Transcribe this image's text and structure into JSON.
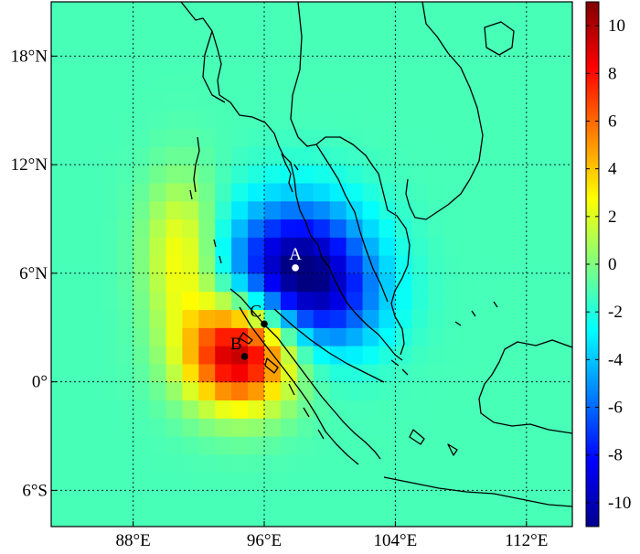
{
  "map": {
    "x_ticks": [
      {
        "lon": 88,
        "label": "88°E"
      },
      {
        "lon": 96,
        "label": "96°E"
      },
      {
        "lon": 104,
        "label": "104°E"
      },
      {
        "lon": 112,
        "label": "112°E"
      }
    ],
    "y_ticks": [
      {
        "lat": 18,
        "label": "18°N"
      },
      {
        "lat": 12,
        "label": "12°N"
      },
      {
        "lat": 6,
        "label": "6°N"
      },
      {
        "lat": 0,
        "label": "0°"
      },
      {
        "lat": -6,
        "label": "6°S"
      }
    ],
    "extent": {
      "lon_min": 83,
      "lon_max": 114.8,
      "lat_min": -8,
      "lat_max": 21
    },
    "markers": [
      {
        "label": "A",
        "lon": 97.9,
        "lat": 6.3,
        "color": "#ffffff"
      },
      {
        "label": "B",
        "lon": 94.8,
        "lat": 1.4,
        "color": "#000000"
      },
      {
        "label": "C",
        "lon": 96.0,
        "lat": 3.2,
        "color": "#000000"
      }
    ]
  },
  "colorbar": {
    "ticks": [
      {
        "value": 10,
        "label": "10"
      },
      {
        "value": 8,
        "label": "8"
      },
      {
        "value": 6,
        "label": "6"
      },
      {
        "value": 4,
        "label": "4"
      },
      {
        "value": 2,
        "label": "2"
      },
      {
        "value": 0,
        "label": "0"
      },
      {
        "value": -2,
        "label": "-2"
      },
      {
        "value": -4,
        "label": "-4"
      },
      {
        "value": -6,
        "label": "-6"
      },
      {
        "value": -8,
        "label": "-8"
      },
      {
        "value": -10,
        "label": "-10"
      }
    ],
    "range": [
      -11,
      11
    ],
    "colormap": "jet"
  },
  "field": {
    "background_value": -1.2,
    "anomalies": [
      {
        "lon": 98.0,
        "lat": 6.3,
        "amp": -9.6,
        "sx": 3.0,
        "sy": 2.6
      },
      {
        "lon": 100.5,
        "lat": 4.0,
        "amp": -2.5,
        "sx": 2.5,
        "sy": 2.0
      },
      {
        "lon": 94.5,
        "lat": 1.6,
        "amp": 11.5,
        "sx": 2.3,
        "sy": 2.1
      },
      {
        "lon": 91.0,
        "lat": 7.0,
        "amp": 4.2,
        "sx": 1.6,
        "sy": 3.0
      }
    ]
  }
}
